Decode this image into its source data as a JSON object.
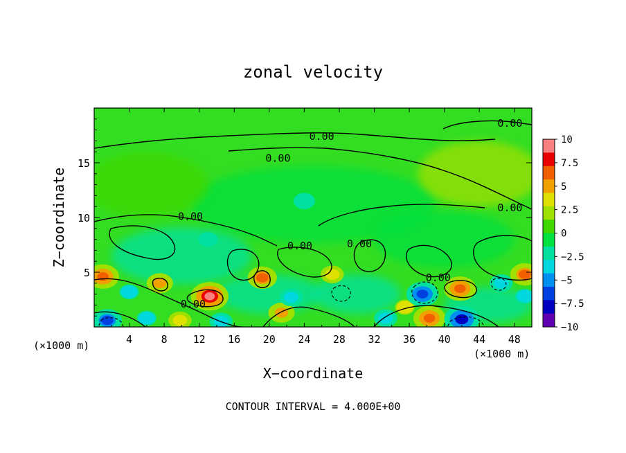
{
  "chart_data": {
    "type": "heatmap",
    "title": "zonal velocity",
    "xlabel": "X−coordinate",
    "ylabel": "Z−coordinate",
    "x_unit_left": "(×1000 m)",
    "x_unit_right": "(×1000 m)",
    "footer": "CONTOUR INTERVAL = 4.000E+00",
    "xlim": [
      0,
      50
    ],
    "ylim": [
      0,
      20
    ],
    "x_ticks": [
      4,
      8,
      12,
      16,
      20,
      24,
      28,
      32,
      36,
      40,
      44,
      48
    ],
    "x_tick_labels": [
      "4",
      "8",
      "12",
      "16",
      "20",
      "24",
      "28",
      "32",
      "36",
      "40",
      "44",
      "48"
    ],
    "y_ticks": [
      5,
      10,
      15
    ],
    "y_tick_labels": [
      "5",
      "10",
      "15"
    ],
    "colorbar": {
      "range": [
        -10,
        10
      ],
      "ticks": [
        10,
        7.5,
        5,
        2.5,
        0,
        -2.5,
        -5,
        -7.5,
        -10
      ],
      "tick_labels": [
        "10",
        "7.5",
        "5",
        "2.5",
        "0",
        "−2.5",
        "−5",
        "−7.5",
        "−10"
      ],
      "colors": [
        "#f88080",
        "#e80000",
        "#f06000",
        "#f0a000",
        "#e0e000",
        "#a0e000",
        "#40d800",
        "#00e040",
        "#00e0a0",
        "#00d8e0",
        "#0090f0",
        "#0040e0",
        "#0000c0",
        "#6000b0"
      ]
    },
    "contour_interval": 4.0,
    "contour_labels": [
      {
        "text": "0.00",
        "x": 47.5,
        "y": 18.6
      },
      {
        "text": "0.00",
        "x": 26.0,
        "y": 17.4
      },
      {
        "text": "0.00",
        "x": 21.0,
        "y": 15.4
      },
      {
        "text": "0.00",
        "x": 11.0,
        "y": 10.1
      },
      {
        "text": "0.00",
        "x": 47.5,
        "y": 10.9
      },
      {
        "text": "0.00",
        "x": 23.5,
        "y": 7.4
      },
      {
        "text": "0.00",
        "x": 30.3,
        "y": 7.6
      },
      {
        "text": "0.00",
        "x": 39.3,
        "y": 4.5
      },
      {
        "text": "0.00",
        "x": 11.3,
        "y": 2.1
      }
    ],
    "features": [
      {
        "x": 1,
        "y": 4.6,
        "value": 7
      },
      {
        "x": 7.5,
        "y": 4.0,
        "value": 5
      },
      {
        "x": 13.2,
        "y": 2.8,
        "value": 9
      },
      {
        "x": 19.2,
        "y": 4.5,
        "value": 6
      },
      {
        "x": 21.4,
        "y": 1.3,
        "value": 5
      },
      {
        "x": 27.2,
        "y": 4.8,
        "value": 4
      },
      {
        "x": 41.8,
        "y": 3.5,
        "value": 7
      },
      {
        "x": 49.2,
        "y": 4.8,
        "value": 6
      },
      {
        "x": 38.3,
        "y": 0.8,
        "value": 7
      },
      {
        "x": 9.8,
        "y": 0.6,
        "value": 4
      },
      {
        "x": 35.5,
        "y": 1.8,
        "value": 3
      },
      {
        "x": 37.5,
        "y": 3.0,
        "value": -7
      },
      {
        "x": 42.0,
        "y": 0.7,
        "value": -8
      },
      {
        "x": 1.5,
        "y": 0.6,
        "value": -6
      },
      {
        "x": 22.5,
        "y": 2.7,
        "value": -4
      },
      {
        "x": 33.3,
        "y": 0.8,
        "value": -4
      },
      {
        "x": 46.5,
        "y": 4.0,
        "value": -4
      },
      {
        "x": 49.2,
        "y": 2.8,
        "value": -3
      },
      {
        "x": 14.5,
        "y": 0.5,
        "value": -4
      },
      {
        "x": 6.0,
        "y": 0.8,
        "value": -3
      },
      {
        "x": 13.0,
        "y": 8.0,
        "value": -2
      },
      {
        "x": 24.0,
        "y": 11.5,
        "value": -1.5
      },
      {
        "x": 4.0,
        "y": 3.2,
        "value": -3
      }
    ]
  }
}
